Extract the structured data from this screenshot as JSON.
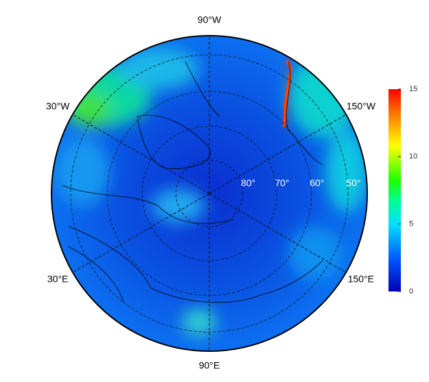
{
  "map": {
    "meridian_labels": [
      {
        "value": -90,
        "label": "90°W"
      },
      {
        "value": -30,
        "label": "30°W"
      },
      {
        "value": -150,
        "label": "150°W"
      },
      {
        "value": 30,
        "label": "30°E"
      },
      {
        "value": 150,
        "label": "150°E"
      },
      {
        "value": 90,
        "label": "90°E"
      }
    ],
    "latitude_labels": [
      {
        "value": 80,
        "label": "80°"
      },
      {
        "value": 70,
        "label": "70°"
      },
      {
        "value": 60,
        "label": "60°"
      },
      {
        "value": 50,
        "label": "50°"
      }
    ],
    "colorbar": {
      "lim": [
        0,
        15
      ],
      "ticks": [
        0,
        5,
        10,
        15
      ]
    }
  }
}
